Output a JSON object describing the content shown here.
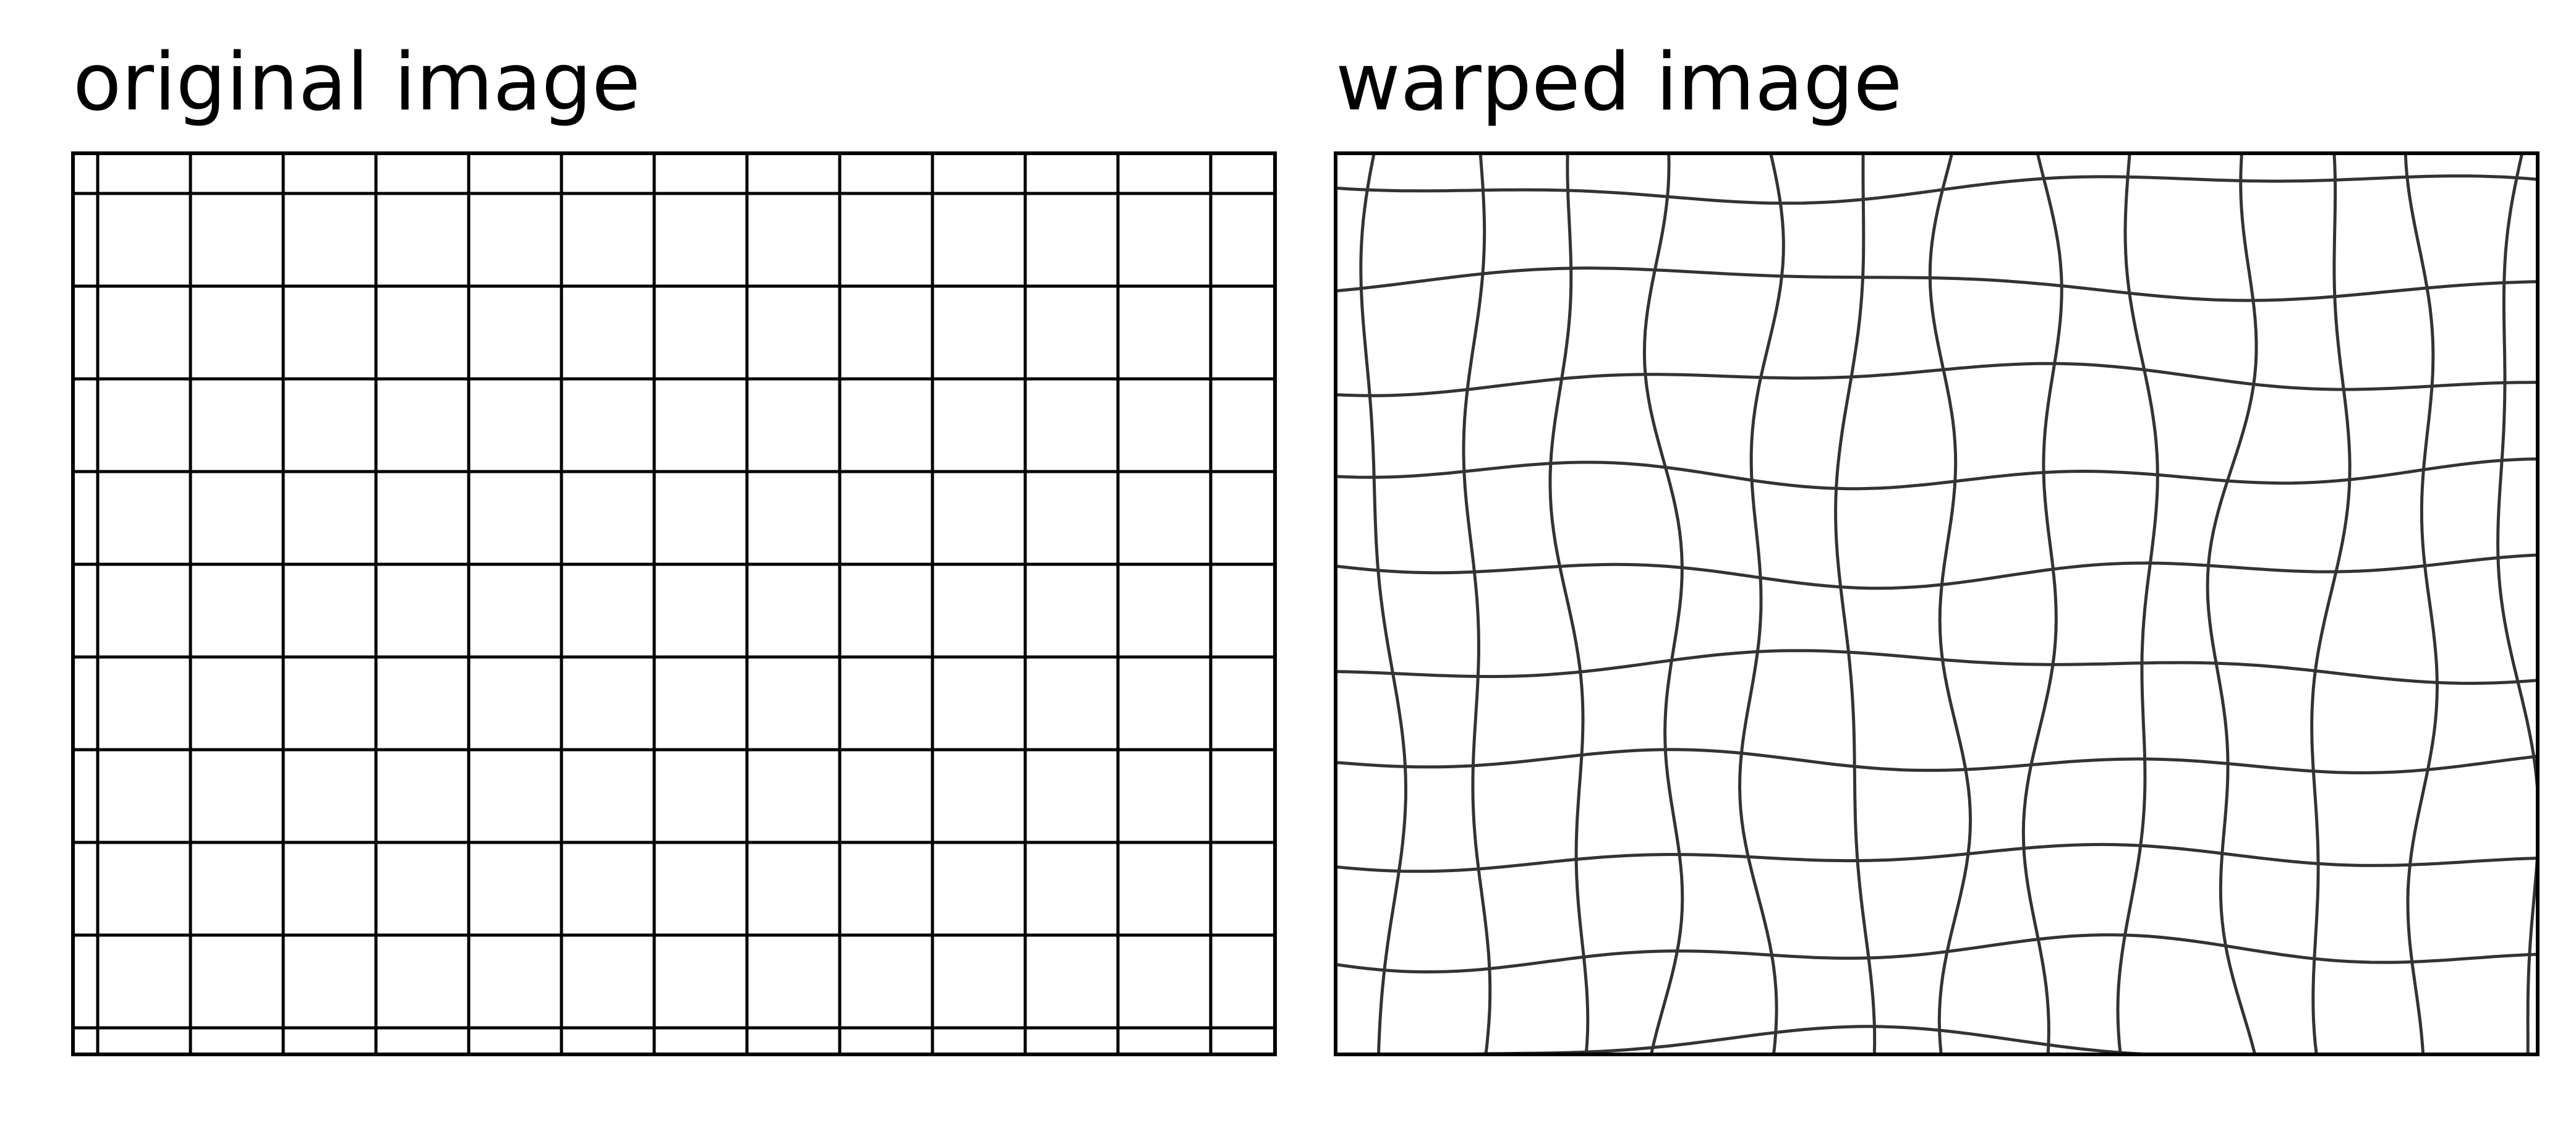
{
  "panels": {
    "original": {
      "title": "original image",
      "line_color": "#000000",
      "frame_color": "#000000"
    },
    "warped": {
      "title": "warped image",
      "line_color": "#333333",
      "frame_color": "#000000"
    }
  },
  "grid": {
    "columns": 13,
    "rows": 10,
    "warped_vertical_lines": 13,
    "warped_horizontal_lines": 10
  }
}
